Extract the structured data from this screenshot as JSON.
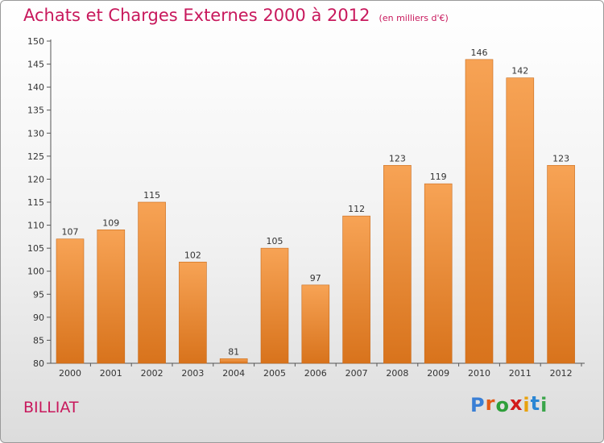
{
  "title": "Achats et Charges Externes 2000 à 2012",
  "subtitle": "(en milliers d'€)",
  "commune": "BILLIAT",
  "logo": {
    "letters": [
      "P",
      "r",
      "o",
      "x",
      "i",
      "t",
      "i"
    ],
    "colors": [
      "#3a7fd5",
      "#e25b17",
      "#2e9f3a",
      "#d21b1b",
      "#e8a20f",
      "#2a86d4",
      "#3aa54a"
    ]
  },
  "colors": {
    "bar_light": "#f7a355",
    "bar_dark": "#d8731c",
    "title": "#c8185c"
  },
  "chart_data": {
    "type": "bar",
    "title": "Achats et Charges Externes 2000 à 2012",
    "subtitle": "(en milliers d'€)",
    "categories": [
      "2000",
      "2001",
      "2002",
      "2003",
      "2004",
      "2005",
      "2006",
      "2007",
      "2008",
      "2009",
      "2010",
      "2011",
      "2012"
    ],
    "values": [
      107,
      109,
      115,
      102,
      81,
      105,
      97,
      112,
      123,
      119,
      146,
      142,
      123
    ],
    "ylim": [
      80,
      150
    ],
    "yticks": [
      80,
      85,
      90,
      95,
      100,
      105,
      110,
      115,
      120,
      125,
      130,
      135,
      140,
      145,
      150
    ],
    "grid": false,
    "legend": "none"
  }
}
